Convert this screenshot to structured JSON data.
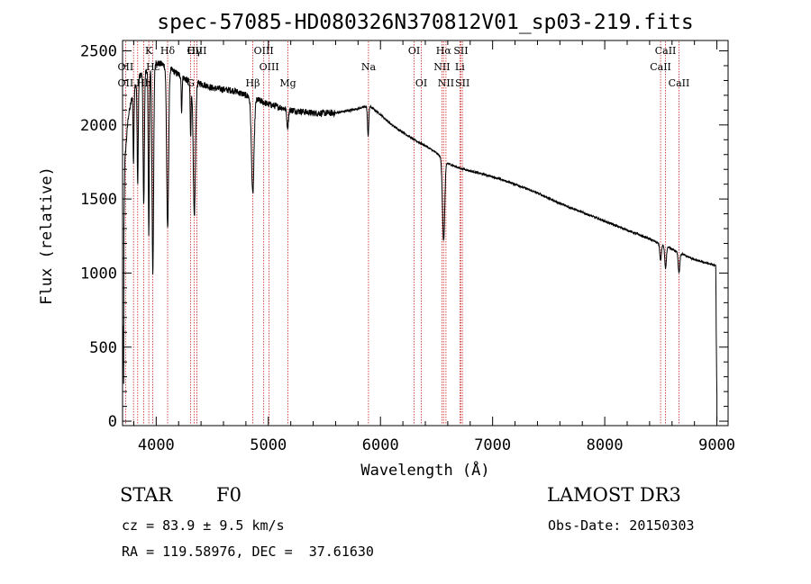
{
  "chart_data": {
    "type": "line",
    "title": "spec-57085-HD080326N370812V01_sp03-219.fits",
    "xlabel": "Wavelength (Å)",
    "ylabel": "Flux (relative)",
    "xlim": [
      3700,
      9100
    ],
    "ylim": [
      -30,
      2570
    ],
    "xticks": [
      4000,
      5000,
      6000,
      7000,
      8000,
      9000
    ],
    "yticks": [
      0,
      500,
      1000,
      1500,
      2000,
      2500
    ],
    "xtick_labels": [
      "4000",
      "5000",
      "6000",
      "7000",
      "8000",
      "9000"
    ],
    "ytick_labels": [
      "0",
      "500",
      "1000",
      "1500",
      "2000",
      "2500"
    ],
    "continuum": {
      "x": [
        3700,
        3720,
        3750,
        3800,
        3850,
        3900,
        3950,
        4000,
        4050,
        4100,
        4200,
        4300,
        4400,
        4500,
        4600,
        4700,
        4800,
        4900,
        5000,
        5100,
        5200,
        5400,
        5600,
        5800,
        5900,
        6000,
        6100,
        6200,
        6300,
        6400,
        6500,
        6600,
        6700,
        6800,
        6900,
        7000,
        7200,
        7400,
        7600,
        7800,
        8000,
        8200,
        8400,
        8600,
        8800,
        8990,
        8995,
        9000
      ],
      "y": [
        600,
        1750,
        2050,
        2250,
        2330,
        2360,
        2380,
        2420,
        2410,
        2390,
        2340,
        2290,
        2280,
        2250,
        2240,
        2230,
        2200,
        2170,
        2140,
        2120,
        2100,
        2080,
        2080,
        2110,
        2130,
        2070,
        2000,
        1950,
        1900,
        1860,
        1810,
        1740,
        1710,
        1690,
        1670,
        1650,
        1600,
        1540,
        1470,
        1410,
        1350,
        1290,
        1230,
        1160,
        1090,
        1050,
        500,
        180
      ]
    },
    "absorption": [
      {
        "x": 3798,
        "depth": 500,
        "width": 6
      },
      {
        "x": 3835,
        "depth": 700,
        "width": 7
      },
      {
        "x": 3889,
        "depth": 900,
        "width": 8
      },
      {
        "x": 3934,
        "depth": 1100,
        "width": 7
      },
      {
        "x": 3970,
        "depth": 1400,
        "width": 10
      },
      {
        "x": 4102,
        "depth": 1100,
        "width": 12
      },
      {
        "x": 4227,
        "depth": 250,
        "width": 5
      },
      {
        "x": 4307,
        "depth": 350,
        "width": 6
      },
      {
        "x": 4340,
        "depth": 900,
        "width": 14
      },
      {
        "x": 4861,
        "depth": 650,
        "width": 16
      },
      {
        "x": 5172,
        "depth": 120,
        "width": 10
      },
      {
        "x": 5890,
        "depth": 200,
        "width": 8
      },
      {
        "x": 6563,
        "depth": 550,
        "width": 14
      },
      {
        "x": 8498,
        "depth": 110,
        "width": 10
      },
      {
        "x": 8542,
        "depth": 150,
        "width": 10
      },
      {
        "x": 8662,
        "depth": 140,
        "width": 10
      }
    ],
    "line_markers": [
      {
        "label": "Hδ",
        "x": 4102,
        "row": 0
      },
      {
        "label": "K",
        "x": 3934,
        "row": 0
      },
      {
        "label": "Hγ",
        "x": 4340,
        "row": 0
      },
      {
        "label": "Hε",
        "x": 3970,
        "row": 1
      },
      {
        "label": "OII",
        "x": 3727,
        "row": 1
      },
      {
        "label": "OII",
        "x": 3727,
        "row": 2
      },
      {
        "label": "Hh",
        "x": 3889,
        "row": 2
      },
      {
        "label": "OIII",
        "x": 4363,
        "row": 0
      },
      {
        "label": "G",
        "x": 4307,
        "row": 2
      },
      {
        "label": "Hβ",
        "x": 4861,
        "row": 2
      },
      {
        "label": "OIII",
        "x": 4959,
        "row": 0
      },
      {
        "label": "OIII",
        "x": 5007,
        "row": 1
      },
      {
        "label": "Mg",
        "x": 5175,
        "row": 2
      },
      {
        "label": "Na",
        "x": 5893,
        "row": 1
      },
      {
        "label": "OI",
        "x": 6300,
        "row": 0
      },
      {
        "label": "OI",
        "x": 6364,
        "row": 2
      },
      {
        "label": "Hα",
        "x": 6563,
        "row": 0
      },
      {
        "label": "NII",
        "x": 6548,
        "row": 1
      },
      {
        "label": "NII",
        "x": 6584,
        "row": 2
      },
      {
        "label": "SII",
        "x": 6717,
        "row": 0
      },
      {
        "label": "Li",
        "x": 6708,
        "row": 1
      },
      {
        "label": "SII",
        "x": 6731,
        "row": 2
      },
      {
        "label": "CaII",
        "x": 8542,
        "row": 0
      },
      {
        "label": "CaII",
        "x": 8498,
        "row": 1
      },
      {
        "label": "CaII",
        "x": 8662,
        "row": 2
      }
    ],
    "marker_lines_x": [
      3727,
      3798,
      3835,
      3889,
      3934,
      3970,
      4102,
      4307,
      4340,
      4363,
      4861,
      4959,
      5007,
      5175,
      5893,
      6300,
      6364,
      6548,
      6563,
      6584,
      6708,
      6717,
      6731,
      8498,
      8542,
      8662
    ]
  },
  "info": {
    "object_class": "STAR",
    "subclass": "F0",
    "survey": "LAMOST DR3",
    "redshift": "cz = 83.9 ± 9.5 km/s",
    "obs_date": "Obs-Date: 20150303",
    "coords": "RA = 119.58976, DEC =  37.61630"
  },
  "colors": {
    "spectrum": "#000000",
    "markers": "#cc2222",
    "axes": "#000000"
  }
}
